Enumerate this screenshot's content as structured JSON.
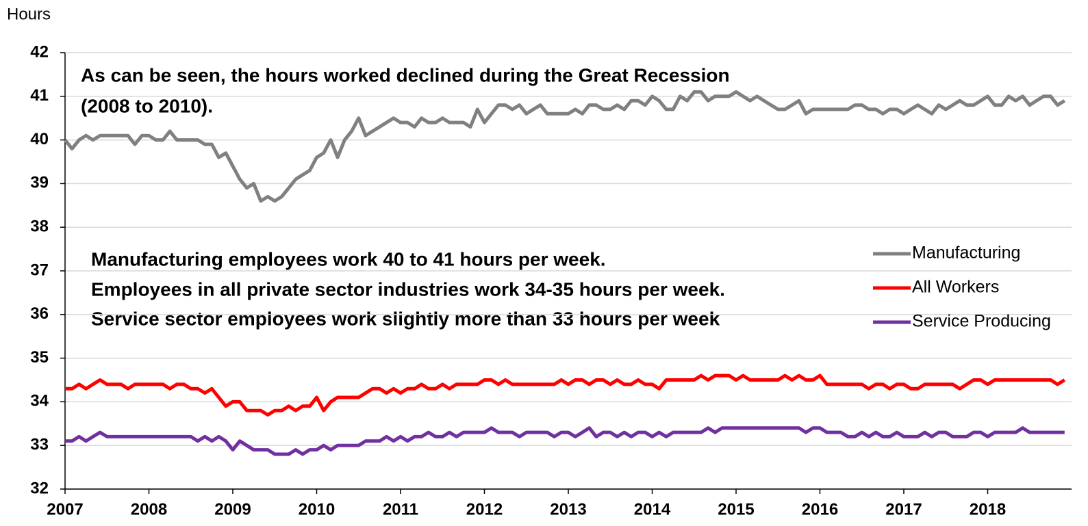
{
  "chart_data": {
    "type": "line",
    "ylabel": "Hours",
    "annotations": [
      "As can be seen, the hours worked declined during the Great Recession",
      "(2008 to 2010).",
      "Manufacturing employees work 40 to 41 hours per week.",
      "Employees in all private sector industries work 34-35 hours per week.",
      "Service sector employees work slightly more than 33 hours per week"
    ],
    "x": [
      2007,
      2007.083,
      2007.167,
      2007.25,
      2007.333,
      2007.417,
      2007.5,
      2007.583,
      2007.667,
      2007.75,
      2007.833,
      2007.917,
      2008,
      2008.083,
      2008.167,
      2008.25,
      2008.333,
      2008.417,
      2008.5,
      2008.583,
      2008.667,
      2008.75,
      2008.833,
      2008.917,
      2009,
      2009.083,
      2009.167,
      2009.25,
      2009.333,
      2009.417,
      2009.5,
      2009.583,
      2009.667,
      2009.75,
      2009.833,
      2009.917,
      2010,
      2010.083,
      2010.167,
      2010.25,
      2010.333,
      2010.417,
      2010.5,
      2010.583,
      2010.667,
      2010.75,
      2010.833,
      2010.917,
      2011,
      2011.083,
      2011.167,
      2011.25,
      2011.333,
      2011.417,
      2011.5,
      2011.583,
      2011.667,
      2011.75,
      2011.833,
      2011.917,
      2012,
      2012.083,
      2012.167,
      2012.25,
      2012.333,
      2012.417,
      2012.5,
      2012.583,
      2012.667,
      2012.75,
      2012.833,
      2012.917,
      2013,
      2013.083,
      2013.167,
      2013.25,
      2013.333,
      2013.417,
      2013.5,
      2013.583,
      2013.667,
      2013.75,
      2013.833,
      2013.917,
      2014,
      2014.083,
      2014.167,
      2014.25,
      2014.333,
      2014.417,
      2014.5,
      2014.583,
      2014.667,
      2014.75,
      2014.833,
      2014.917,
      2015,
      2015.083,
      2015.167,
      2015.25,
      2015.333,
      2015.417,
      2015.5,
      2015.583,
      2015.667,
      2015.75,
      2015.833,
      2015.917,
      2016,
      2016.083,
      2016.167,
      2016.25,
      2016.333,
      2016.417,
      2016.5,
      2016.583,
      2016.667,
      2016.75,
      2016.833,
      2016.917,
      2017,
      2017.083,
      2017.167,
      2017.25,
      2017.333,
      2017.417,
      2017.5,
      2017.583,
      2017.667,
      2017.75,
      2017.833,
      2017.917,
      2018,
      2018.083,
      2018.167,
      2018.25,
      2018.333,
      2018.417,
      2018.5,
      2018.583,
      2018.667,
      2018.75,
      2018.833,
      2018.917
    ],
    "series": [
      {
        "name": "Manufacturing",
        "color": "#808080",
        "values": [
          40.0,
          39.8,
          40.0,
          40.1,
          40.0,
          40.1,
          40.1,
          40.1,
          40.1,
          40.1,
          39.9,
          40.1,
          40.1,
          40.0,
          40.0,
          40.2,
          40.0,
          40.0,
          40.0,
          40.0,
          39.9,
          39.9,
          39.6,
          39.7,
          39.4,
          39.1,
          38.9,
          39.0,
          38.6,
          38.7,
          38.6,
          38.7,
          38.9,
          39.1,
          39.2,
          39.3,
          39.6,
          39.7,
          40.0,
          39.6,
          40.0,
          40.2,
          40.5,
          40.1,
          40.2,
          40.3,
          40.4,
          40.5,
          40.4,
          40.4,
          40.3,
          40.5,
          40.4,
          40.4,
          40.5,
          40.4,
          40.4,
          40.4,
          40.3,
          40.7,
          40.4,
          40.6,
          40.8,
          40.8,
          40.7,
          40.8,
          40.6,
          40.7,
          40.8,
          40.6,
          40.6,
          40.6,
          40.6,
          40.7,
          40.6,
          40.8,
          40.8,
          40.7,
          40.7,
          40.8,
          40.7,
          40.9,
          40.9,
          40.8,
          41.0,
          40.9,
          40.7,
          40.7,
          41.0,
          40.9,
          41.1,
          41.1,
          40.9,
          41.0,
          41.0,
          41.0,
          41.1,
          41.0,
          40.9,
          41.0,
          40.9,
          40.8,
          40.7,
          40.7,
          40.8,
          40.9,
          40.6,
          40.7,
          40.7,
          40.7,
          40.7,
          40.7,
          40.7,
          40.8,
          40.8,
          40.7,
          40.7,
          40.6,
          40.7,
          40.7,
          40.6,
          40.7,
          40.8,
          40.7,
          40.6,
          40.8,
          40.7,
          40.8,
          40.9,
          40.8,
          40.8,
          40.9,
          41.0,
          40.8,
          40.8,
          41.0,
          40.9,
          41.0,
          40.8,
          40.9,
          41.0,
          41.0,
          40.8,
          40.9
        ]
      },
      {
        "name": "All Workers",
        "color": "#ff0000",
        "values": [
          34.3,
          34.3,
          34.4,
          34.3,
          34.4,
          34.5,
          34.4,
          34.4,
          34.4,
          34.3,
          34.4,
          34.4,
          34.4,
          34.4,
          34.4,
          34.3,
          34.4,
          34.4,
          34.3,
          34.3,
          34.2,
          34.3,
          34.1,
          33.9,
          34.0,
          34.0,
          33.8,
          33.8,
          33.8,
          33.7,
          33.8,
          33.8,
          33.9,
          33.8,
          33.9,
          33.9,
          34.1,
          33.8,
          34.0,
          34.1,
          34.1,
          34.1,
          34.1,
          34.2,
          34.3,
          34.3,
          34.2,
          34.3,
          34.2,
          34.3,
          34.3,
          34.4,
          34.3,
          34.3,
          34.4,
          34.3,
          34.4,
          34.4,
          34.4,
          34.4,
          34.5,
          34.5,
          34.4,
          34.5,
          34.4,
          34.4,
          34.4,
          34.4,
          34.4,
          34.4,
          34.4,
          34.5,
          34.4,
          34.5,
          34.5,
          34.4,
          34.5,
          34.5,
          34.4,
          34.5,
          34.4,
          34.4,
          34.5,
          34.4,
          34.4,
          34.3,
          34.5,
          34.5,
          34.5,
          34.5,
          34.5,
          34.6,
          34.5,
          34.6,
          34.6,
          34.6,
          34.5,
          34.6,
          34.5,
          34.5,
          34.5,
          34.5,
          34.5,
          34.6,
          34.5,
          34.6,
          34.5,
          34.5,
          34.6,
          34.4,
          34.4,
          34.4,
          34.4,
          34.4,
          34.4,
          34.3,
          34.4,
          34.4,
          34.3,
          34.4,
          34.4,
          34.3,
          34.3,
          34.4,
          34.4,
          34.4,
          34.4,
          34.4,
          34.3,
          34.4,
          34.5,
          34.5,
          34.4,
          34.5,
          34.5,
          34.5,
          34.5,
          34.5,
          34.5,
          34.5,
          34.5,
          34.5,
          34.4,
          34.5
        ]
      },
      {
        "name": "Service Producing",
        "color": "#7030a0",
        "values": [
          33.1,
          33.1,
          33.2,
          33.1,
          33.2,
          33.3,
          33.2,
          33.2,
          33.2,
          33.2,
          33.2,
          33.2,
          33.2,
          33.2,
          33.2,
          33.2,
          33.2,
          33.2,
          33.2,
          33.1,
          33.2,
          33.1,
          33.2,
          33.1,
          32.9,
          33.1,
          33.0,
          32.9,
          32.9,
          32.9,
          32.8,
          32.8,
          32.8,
          32.9,
          32.8,
          32.9,
          32.9,
          33.0,
          32.9,
          33.0,
          33.0,
          33.0,
          33.0,
          33.1,
          33.1,
          33.1,
          33.2,
          33.1,
          33.2,
          33.1,
          33.2,
          33.2,
          33.3,
          33.2,
          33.2,
          33.3,
          33.2,
          33.3,
          33.3,
          33.3,
          33.3,
          33.4,
          33.3,
          33.3,
          33.3,
          33.2,
          33.3,
          33.3,
          33.3,
          33.3,
          33.2,
          33.3,
          33.3,
          33.2,
          33.3,
          33.4,
          33.2,
          33.3,
          33.3,
          33.2,
          33.3,
          33.2,
          33.3,
          33.3,
          33.2,
          33.3,
          33.2,
          33.3,
          33.3,
          33.3,
          33.3,
          33.3,
          33.4,
          33.3,
          33.4,
          33.4,
          33.4,
          33.4,
          33.4,
          33.4,
          33.4,
          33.4,
          33.4,
          33.4,
          33.4,
          33.4,
          33.3,
          33.4,
          33.4,
          33.3,
          33.3,
          33.3,
          33.2,
          33.2,
          33.3,
          33.2,
          33.3,
          33.2,
          33.2,
          33.3,
          33.2,
          33.2,
          33.2,
          33.3,
          33.2,
          33.3,
          33.3,
          33.2,
          33.2,
          33.2,
          33.3,
          33.3,
          33.2,
          33.3,
          33.3,
          33.3,
          33.3,
          33.4,
          33.3,
          33.3,
          33.3,
          33.3,
          33.3,
          33.3
        ]
      }
    ],
    "xlim": [
      2007,
      2019
    ],
    "xticks": [
      2007,
      2008,
      2009,
      2010,
      2011,
      2012,
      2013,
      2014,
      2015,
      2016,
      2017,
      2018
    ],
    "ylim": [
      32,
      42
    ],
    "yticks": [
      32,
      33,
      34,
      35,
      36,
      37,
      38,
      39,
      40,
      41,
      42
    ],
    "grid": true,
    "legend": "right"
  }
}
